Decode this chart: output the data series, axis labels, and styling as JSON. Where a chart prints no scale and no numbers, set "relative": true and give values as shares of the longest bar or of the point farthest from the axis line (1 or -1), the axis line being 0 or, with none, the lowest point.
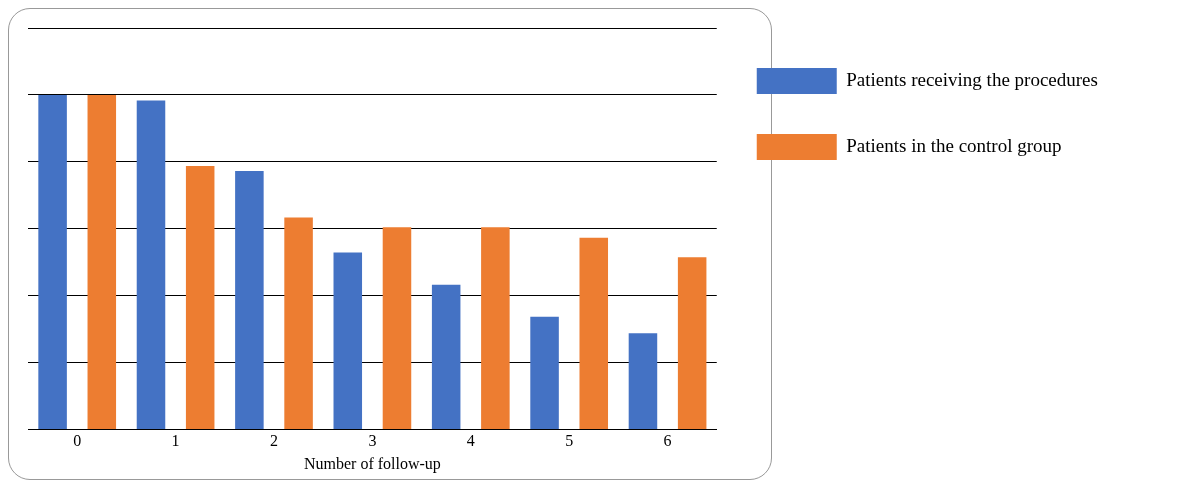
{
  "chart_data": {
    "type": "bar",
    "xlabel": "Number of follow-up",
    "categories": [
      "0",
      "1",
      "2",
      "3",
      "4",
      "5",
      "6"
    ],
    "relative": true,
    "grid": "y",
    "legend": "right",
    "series": [
      {
        "name": "Patients receiving the procedures",
        "color": "#4472c4",
        "values": [
          1,
          0.983,
          0.773,
          0.529,
          0.433,
          0.337,
          0.288
        ]
      },
      {
        "name": "Patients in the control group",
        "color": "#ed7d31",
        "values": [
          1,
          0.788,
          0.634,
          0.605,
          0.605,
          0.573,
          0.515
        ]
      }
    ]
  }
}
